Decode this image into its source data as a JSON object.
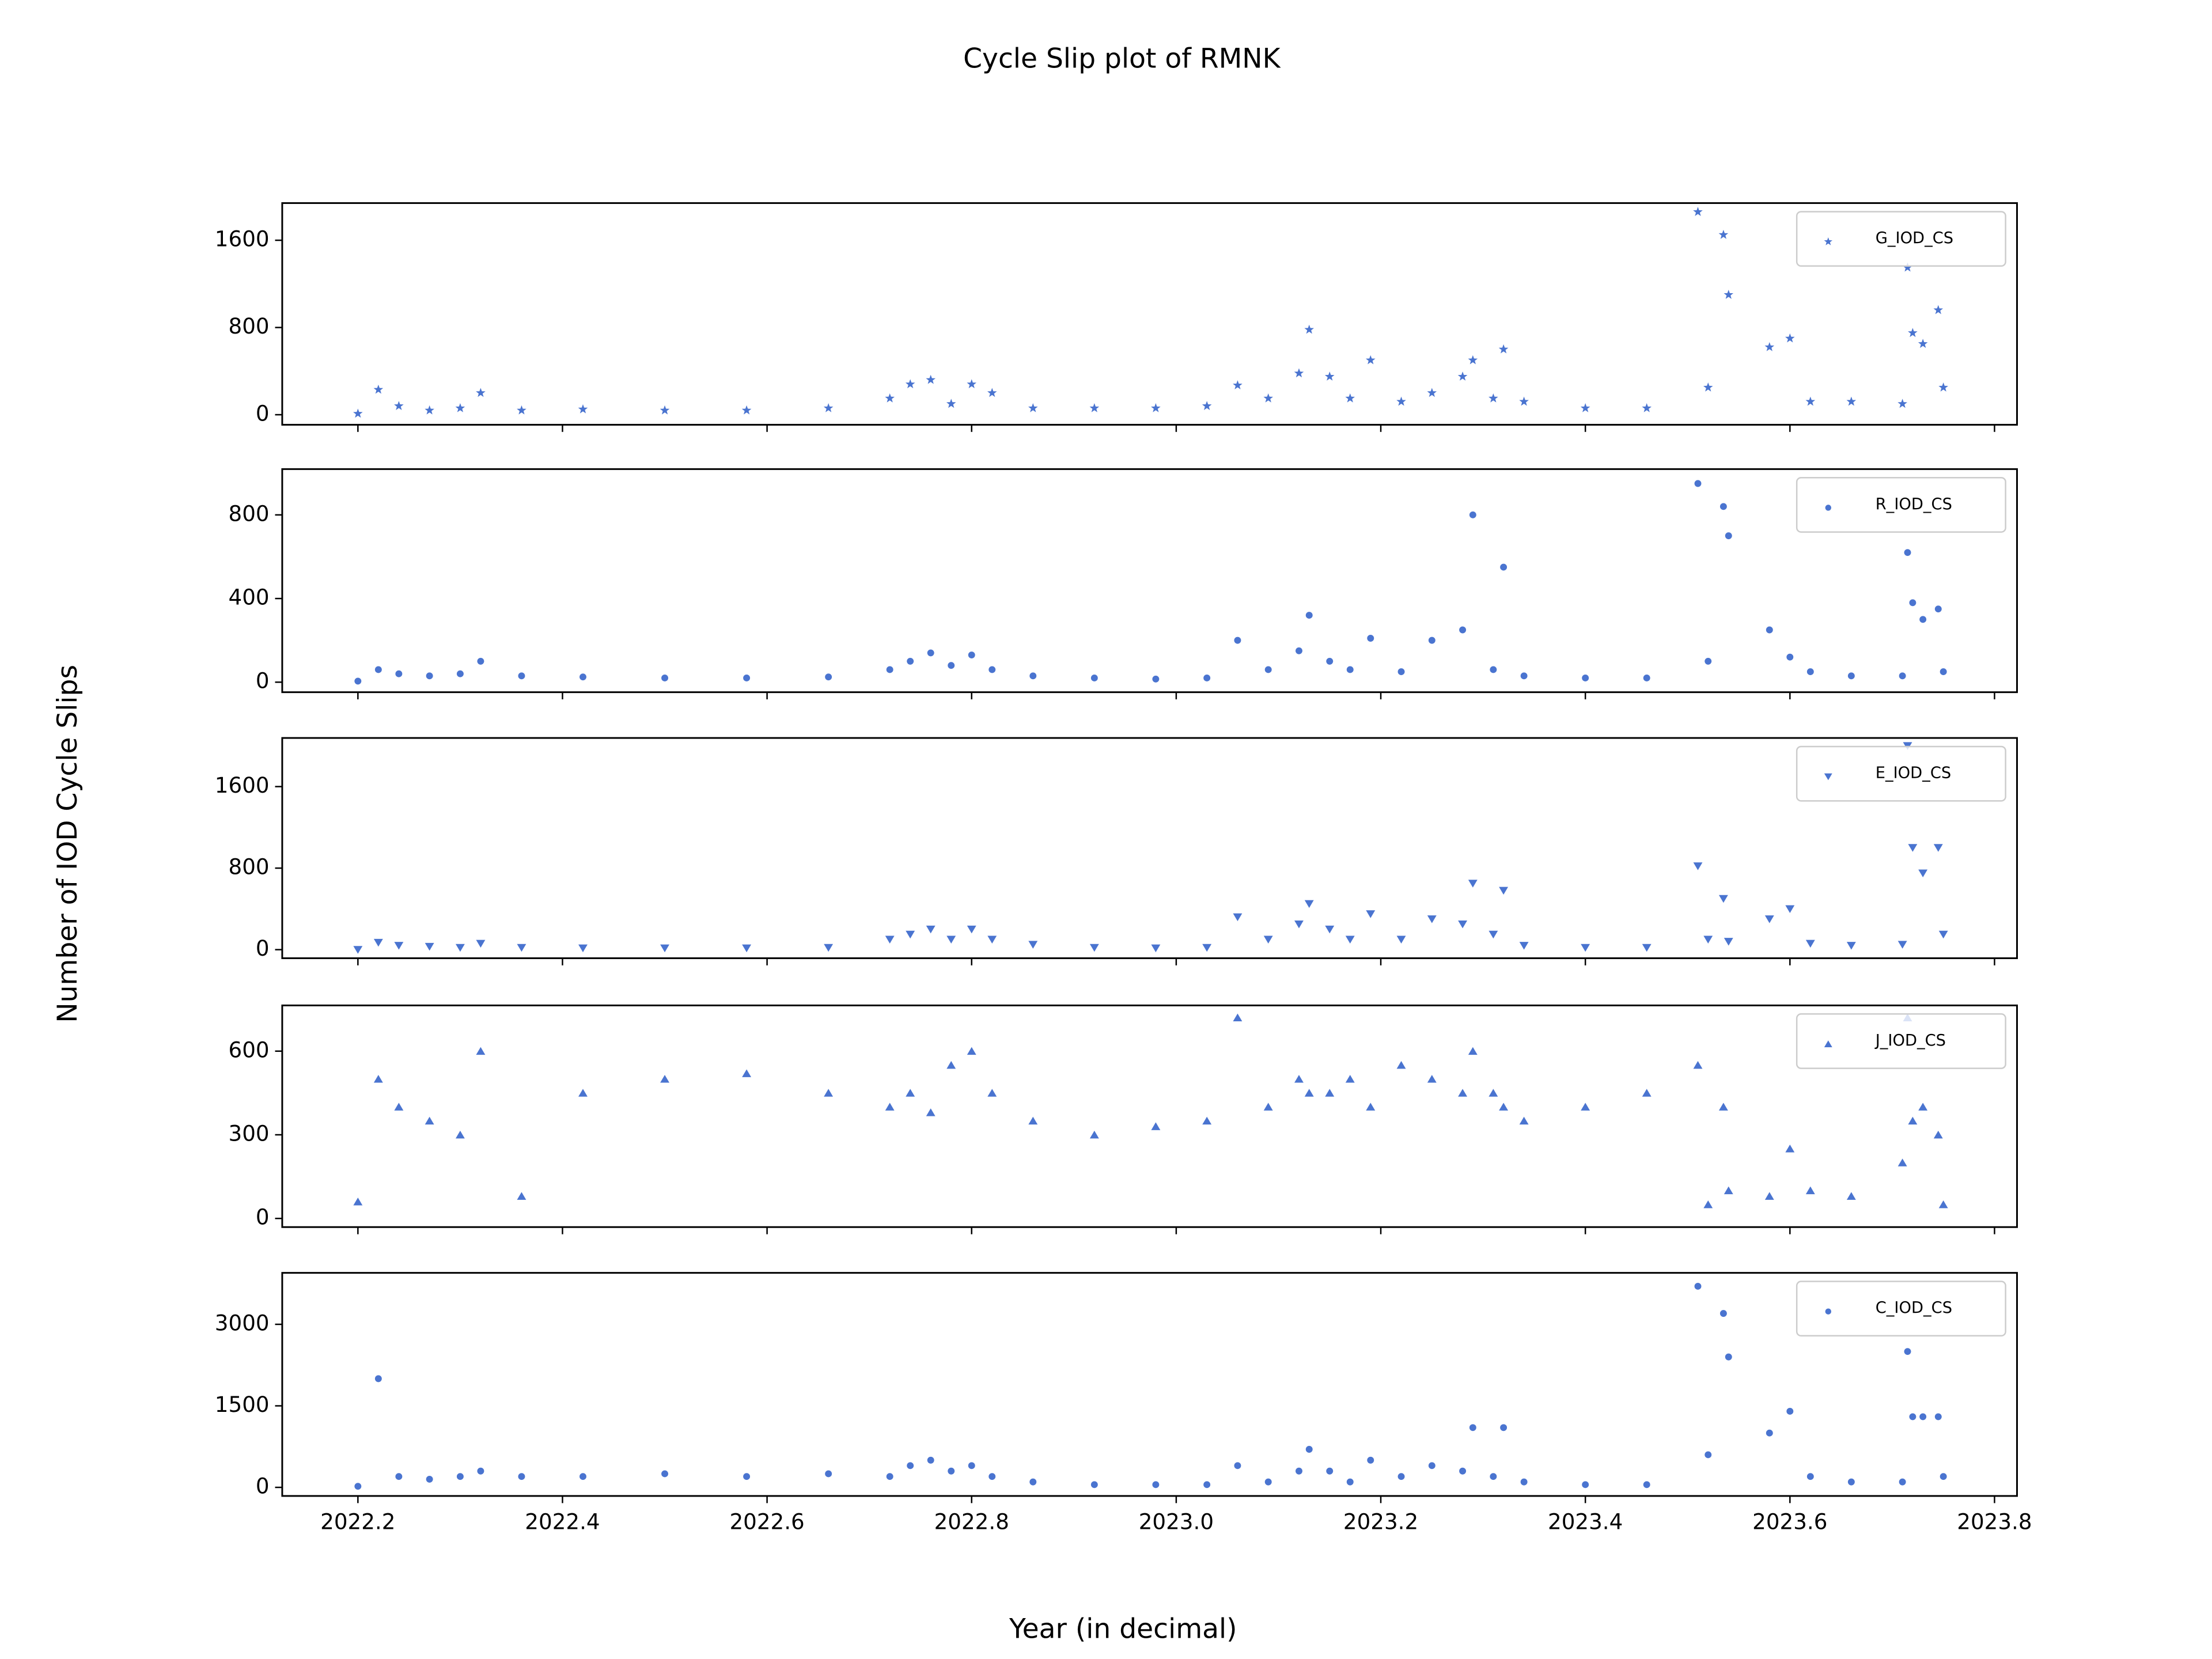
{
  "title": "Cycle Slip plot of RMNK",
  "ylabel": "Number of IOD Cycle Slips",
  "xlabel": "Year (in decimal)",
  "chart_data": [
    {
      "type": "scatter",
      "name": "G_IOD_CS",
      "marker": "star",
      "color": "#4a74d0",
      "legend": "upper right",
      "x": [
        2022.2,
        2022.22,
        2022.24,
        2022.27,
        2022.3,
        2022.32,
        2022.36,
        2022.42,
        2022.5,
        2022.58,
        2022.66,
        2022.72,
        2022.74,
        2022.76,
        2022.78,
        2022.8,
        2022.82,
        2022.86,
        2022.92,
        2022.98,
        2023.03,
        2023.06,
        2023.09,
        2023.12,
        2023.13,
        2023.15,
        2023.17,
        2023.19,
        2023.22,
        2023.25,
        2023.28,
        2023.29,
        2023.31,
        2023.32,
        2023.34,
        2023.4,
        2023.46,
        2023.51,
        2023.52,
        2023.535,
        2023.54,
        2023.58,
        2023.6,
        2023.62,
        2023.66,
        2023.71,
        2023.715,
        2023.72,
        2023.73,
        2023.745,
        2023.75
      ],
      "values": [
        10,
        230,
        80,
        40,
        60,
        200,
        40,
        50,
        40,
        40,
        60,
        150,
        280,
        320,
        100,
        280,
        200,
        60,
        60,
        60,
        80,
        270,
        150,
        380,
        780,
        350,
        150,
        500,
        120,
        200,
        350,
        500,
        150,
        600,
        120,
        60,
        60,
        1860,
        250,
        1650,
        1100,
        620,
        700,
        120,
        120,
        100,
        1350,
        750,
        650,
        960,
        250
      ],
      "xlim": [
        2022.126,
        2023.822
      ],
      "ylim": [
        -92,
        1941
      ],
      "yticks": [
        0,
        800,
        1600
      ]
    },
    {
      "type": "scatter",
      "name": "R_IOD_CS",
      "marker": "circle",
      "color": "#4a74d0",
      "legend": "upper right",
      "x": [
        2022.2,
        2022.22,
        2022.24,
        2022.27,
        2022.3,
        2022.32,
        2022.36,
        2022.42,
        2022.5,
        2022.58,
        2022.66,
        2022.72,
        2022.74,
        2022.76,
        2022.78,
        2022.8,
        2022.82,
        2022.86,
        2022.92,
        2022.98,
        2023.03,
        2023.06,
        2023.09,
        2023.12,
        2023.13,
        2023.15,
        2023.17,
        2023.19,
        2023.22,
        2023.25,
        2023.28,
        2023.29,
        2023.31,
        2023.32,
        2023.34,
        2023.4,
        2023.46,
        2023.51,
        2023.52,
        2023.535,
        2023.54,
        2023.58,
        2023.6,
        2023.62,
        2023.66,
        2023.71,
        2023.715,
        2023.72,
        2023.73,
        2023.745,
        2023.75
      ],
      "values": [
        5,
        60,
        40,
        30,
        40,
        100,
        30,
        25,
        20,
        20,
        25,
        60,
        100,
        140,
        80,
        130,
        60,
        30,
        20,
        15,
        20,
        200,
        60,
        150,
        320,
        100,
        60,
        210,
        50,
        200,
        250,
        800,
        60,
        550,
        30,
        20,
        20,
        950,
        100,
        840,
        700,
        250,
        120,
        50,
        30,
        30,
        620,
        380,
        300,
        350,
        50
      ],
      "xlim": [
        2022.126,
        2023.822
      ],
      "ylim": [
        -48,
        1019
      ],
      "yticks": [
        0,
        400,
        800
      ]
    },
    {
      "type": "scatter",
      "name": "E_IOD_CS",
      "marker": "triangle-down",
      "color": "#4a74d0",
      "legend": "upper right",
      "x": [
        2022.2,
        2022.22,
        2022.24,
        2022.27,
        2022.3,
        2022.32,
        2022.36,
        2022.42,
        2022.5,
        2022.58,
        2022.66,
        2022.72,
        2022.74,
        2022.76,
        2022.78,
        2022.8,
        2022.82,
        2022.86,
        2022.92,
        2022.98,
        2023.03,
        2023.06,
        2023.09,
        2023.12,
        2023.13,
        2023.15,
        2023.17,
        2023.19,
        2023.22,
        2023.25,
        2023.28,
        2023.29,
        2023.31,
        2023.32,
        2023.34,
        2023.4,
        2023.46,
        2023.51,
        2023.52,
        2023.535,
        2023.54,
        2023.58,
        2023.6,
        2023.62,
        2023.66,
        2023.71,
        2023.715,
        2023.72,
        2023.73,
        2023.745,
        2023.75
      ],
      "values": [
        0,
        70,
        40,
        30,
        20,
        60,
        20,
        15,
        15,
        15,
        20,
        100,
        150,
        200,
        100,
        200,
        100,
        50,
        20,
        15,
        20,
        320,
        100,
        250,
        450,
        200,
        100,
        350,
        100,
        300,
        250,
        650,
        150,
        580,
        40,
        20,
        20,
        820,
        100,
        500,
        80,
        300,
        400,
        60,
        40,
        50,
        2000,
        1000,
        750,
        1000,
        150
      ],
      "xlim": [
        2022.126,
        2023.822
      ],
      "ylim": [
        -84,
        2077
      ],
      "yticks": [
        0,
        800,
        1600
      ]
    },
    {
      "type": "scatter",
      "name": "J_IOD_CS",
      "marker": "triangle-up",
      "color": "#4a74d0",
      "legend": "upper right",
      "x": [
        2022.2,
        2022.22,
        2022.24,
        2022.27,
        2022.3,
        2022.32,
        2022.36,
        2022.42,
        2022.5,
        2022.58,
        2022.66,
        2022.72,
        2022.74,
        2022.76,
        2022.78,
        2022.8,
        2022.82,
        2022.86,
        2022.92,
        2022.98,
        2023.03,
        2023.06,
        2023.09,
        2023.12,
        2023.13,
        2023.15,
        2023.17,
        2023.19,
        2023.22,
        2023.25,
        2023.28,
        2023.29,
        2023.31,
        2023.32,
        2023.34,
        2023.4,
        2023.46,
        2023.51,
        2023.52,
        2023.535,
        2023.54,
        2023.58,
        2023.6,
        2023.62,
        2023.66,
        2023.71,
        2023.715,
        2023.72,
        2023.73,
        2023.745,
        2023.75
      ],
      "values": [
        60,
        500,
        400,
        350,
        300,
        600,
        80,
        450,
        500,
        520,
        450,
        400,
        450,
        380,
        550,
        600,
        450,
        350,
        300,
        330,
        350,
        720,
        400,
        500,
        450,
        450,
        500,
        400,
        550,
        500,
        450,
        600,
        450,
        400,
        350,
        400,
        450,
        550,
        50,
        400,
        100,
        80,
        250,
        100,
        80,
        200,
        720,
        350,
        400,
        300,
        50
      ],
      "xlim": [
        2022.126,
        2023.822
      ],
      "ylim": [
        -31,
        764
      ],
      "yticks": [
        0,
        300,
        600
      ]
    },
    {
      "type": "scatter",
      "name": "C_IOD_CS",
      "marker": "circle",
      "color": "#4a74d0",
      "legend": "upper right",
      "x": [
        2022.2,
        2022.22,
        2022.24,
        2022.27,
        2022.3,
        2022.32,
        2022.36,
        2022.42,
        2022.5,
        2022.58,
        2022.66,
        2022.72,
        2022.74,
        2022.76,
        2022.78,
        2022.8,
        2022.82,
        2022.86,
        2022.92,
        2022.98,
        2023.03,
        2023.06,
        2023.09,
        2023.12,
        2023.13,
        2023.15,
        2023.17,
        2023.19,
        2023.22,
        2023.25,
        2023.28,
        2023.29,
        2023.31,
        2023.32,
        2023.34,
        2023.4,
        2023.46,
        2023.51,
        2023.52,
        2023.535,
        2023.54,
        2023.58,
        2023.6,
        2023.62,
        2023.66,
        2023.71,
        2023.715,
        2023.72,
        2023.73,
        2023.745,
        2023.75
      ],
      "values": [
        20,
        2000,
        200,
        150,
        200,
        300,
        200,
        200,
        250,
        200,
        250,
        200,
        400,
        500,
        300,
        400,
        200,
        100,
        50,
        50,
        50,
        400,
        100,
        300,
        700,
        300,
        100,
        500,
        200,
        400,
        300,
        1100,
        200,
        1100,
        100,
        50,
        50,
        3700,
        600,
        3200,
        2400,
        1000,
        1400,
        200,
        100,
        100,
        2500,
        1300,
        1300,
        1300,
        200
      ],
      "xlim": [
        2022.126,
        2023.822
      ],
      "ylim": [
        -158,
        3947
      ],
      "yticks": [
        0,
        1500,
        3000
      ],
      "xticks": [
        2022.2,
        2022.4,
        2022.6,
        2022.8,
        {
          "value": 2023,
          "label": "2023.0"
        },
        2023.2,
        2023.4,
        2023.6,
        2023.8
      ]
    }
  ]
}
